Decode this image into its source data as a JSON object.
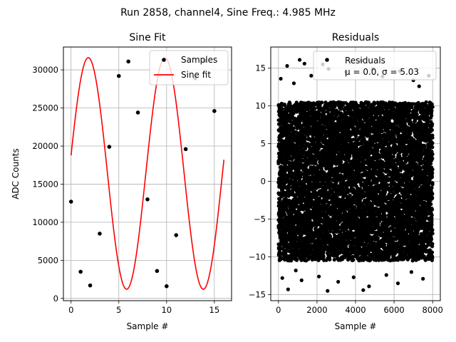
{
  "figure": {
    "suptitle": "Run 2858, channel4, Sine Freq.: 4.985 MHz"
  },
  "chart_data": [
    {
      "type": "scatter",
      "title": "Sine Fit",
      "xlabel": "Sample #",
      "ylabel": "ADC Counts",
      "xlim": [
        -0.8,
        16.8
      ],
      "ylim": [
        -300,
        33000
      ],
      "xticks": [
        0,
        5,
        10,
        15
      ],
      "yticks": [
        0,
        5000,
        10000,
        15000,
        20000,
        25000,
        30000
      ],
      "grid": true,
      "legend_position": "upper right",
      "series": [
        {
          "name": "Samples",
          "kind": "points",
          "color": "#000000",
          "x": [
            0,
            1,
            2,
            3,
            4,
            5,
            6,
            7,
            8,
            9,
            10,
            11,
            12,
            13,
            14,
            15
          ],
          "y": [
            12700,
            3500,
            1700,
            8500,
            19900,
            29200,
            31100,
            24400,
            13000,
            3600,
            1600,
            8300,
            19600,
            28900,
            31200,
            24600
          ]
        },
        {
          "name": "Sine fit",
          "kind": "line",
          "color": "#ff0000",
          "offset": 16400,
          "amplitude": 15200,
          "period": 8.024,
          "phase_x": -0.2,
          "x_range": [
            0,
            16
          ]
        }
      ]
    },
    {
      "type": "scatter",
      "title": "Residuals",
      "xlabel": "Sample #",
      "xlim": [
        -400,
        8400
      ],
      "ylim": [
        -15.8,
        17.8
      ],
      "xticks": [
        0,
        2000,
        4000,
        6000,
        8000
      ],
      "yticks": [
        -15,
        -10,
        -5,
        0,
        5,
        10,
        15
      ],
      "grid": true,
      "legend_position": "upper right",
      "series": [
        {
          "name": "Residuals",
          "kind": "points",
          "color": "#000000",
          "n_points": 8000,
          "x_range": [
            0,
            7999
          ],
          "distribution": "uniform",
          "range": [
            -10.5,
            10.5
          ],
          "outliers": [
            [
              120,
              13.6
            ],
            [
              450,
              15.3
            ],
            [
              800,
              13.0
            ],
            [
              1100,
              16.1
            ],
            [
              1350,
              15.6
            ],
            [
              1700,
              14.0
            ],
            [
              2300,
              15.5
            ],
            [
              2600,
              14.9
            ],
            [
              3500,
              14.5
            ],
            [
              4300,
              16.0
            ],
            [
              4900,
              14.9
            ],
            [
              5400,
              13.9
            ],
            [
              6300,
              14.6
            ],
            [
              7000,
              13.4
            ],
            [
              7800,
              14.0
            ],
            [
              200,
              -12.8
            ],
            [
              500,
              -14.3
            ],
            [
              1200,
              -13.1
            ],
            [
              2100,
              -12.6
            ],
            [
              2550,
              -14.5
            ],
            [
              3100,
              -13.3
            ],
            [
              3900,
              -12.7
            ],
            [
              4400,
              -14.4
            ],
            [
              4700,
              -13.9
            ],
            [
              5600,
              -12.4
            ],
            [
              6200,
              -13.5
            ],
            [
              6900,
              -12.0
            ],
            [
              7500,
              -12.9
            ],
            [
              900,
              -11.8
            ],
            [
              7300,
              12.6
            ]
          ]
        }
      ],
      "stats_label": "μ = 0.0, σ = 5.03",
      "mean": 0.0,
      "sigma": 5.03
    }
  ]
}
